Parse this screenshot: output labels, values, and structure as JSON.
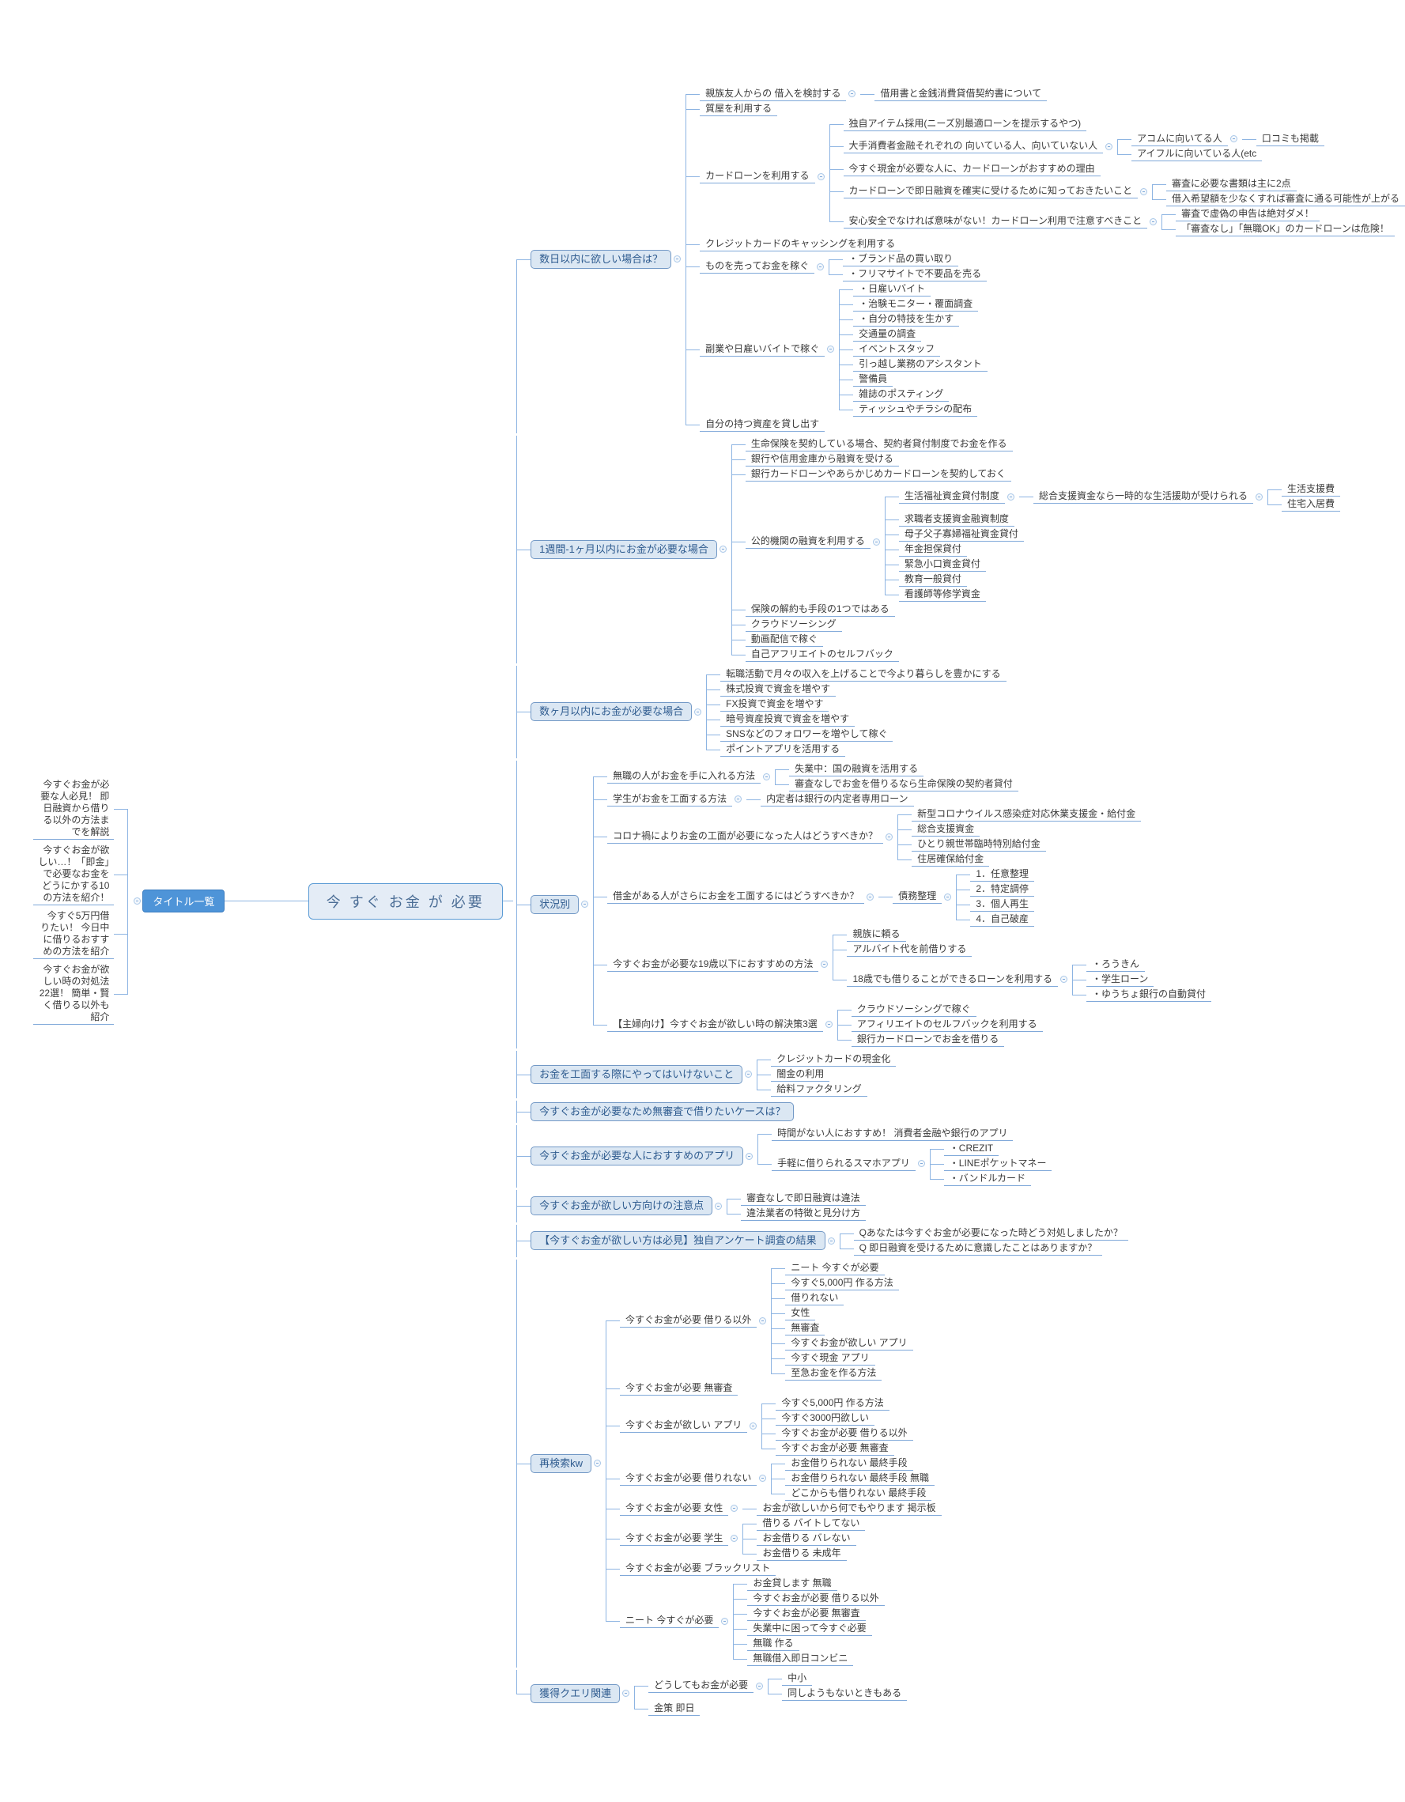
{
  "central": {
    "label": "今 すぐ お金 が 必要"
  },
  "colors": {
    "connector": "#8db4e2",
    "underline": "#7fa8d9",
    "box_fill": "#dbe7f3",
    "box_border": "#7399c6",
    "box_text": "#2e5b8f",
    "title_node_fill": "#4e94d8",
    "central_fill": "#e4ecf6"
  },
  "left_branch": {
    "node": "タイトル一覧",
    "items": [
      "今すぐお金が必要な人必見！ 即日融資から借りる以外の方法までを解説",
      "今すぐお金が欲しい…！「即金」で必要なお金をどうにかする10の方法を紹介！",
      "今すぐ5万円借りたい！ 今日中に借りるおすすめの方法を紹介",
      "今すぐお金が欲しい時の対処法22選！ 簡単・賢く借りる以外も紹介"
    ]
  },
  "sections": [
    {
      "t": "数日以内に欲しい場合は？",
      "box": true,
      "c": [
        {
          "t": "親族友人からの 借入を検討する",
          "c": [
            {
              "t": "借用書と金銭消費貸借契約書について"
            }
          ]
        },
        {
          "t": "質屋を利用する"
        },
        {
          "t": "カードローンを利用する",
          "c": [
            {
              "t": "独自アイテム採用(ニーズ別最適ローンを提示するやつ)"
            },
            {
              "t": "大手消費者金融それぞれの 向いている人、向いていない人",
              "c": [
                {
                  "t": "アコムに向いてる人",
                  "c": [
                    {
                      "t": "口コミも掲載"
                    }
                  ]
                },
                {
                  "t": "アイフルに向いている人(etc"
                }
              ]
            },
            {
              "t": "今すぐ現金が必要な人に、カードローンがおすすめの理由"
            },
            {
              "t": "カードローンで即日融資を確実に受けるために知っておきたいこと",
              "c": [
                {
                  "t": "審査に必要な書類は主に2点"
                },
                {
                  "t": "借入希望額を少なくすれば審査に通る可能性が上がる"
                }
              ]
            },
            {
              "t": "安心安全でなければ意味がない！カードローン利用で注意すべきこと",
              "c": [
                {
                  "t": "審査で虚偽の申告は絶対ダメ！"
                },
                {
                  "t": "「審査なし」「無職OK」のカードローンは危険！"
                }
              ]
            }
          ]
        },
        {
          "t": "クレジットカードのキャッシングを利用する"
        },
        {
          "t": "ものを売ってお金を稼ぐ",
          "c": [
            {
              "t": "・ブランド品の買い取り"
            },
            {
              "t": "・フリマサイトで不要品を売る"
            }
          ]
        },
        {
          "t": "副業や日雇いバイトで稼ぐ",
          "c": [
            {
              "t": "・日雇いバイト"
            },
            {
              "t": "・治験モニター・覆面調査"
            },
            {
              "t": "・自分の特技を生かす"
            },
            {
              "t": "交通量の調査"
            },
            {
              "t": "イベントスタッフ"
            },
            {
              "t": "引っ越し業務のアシスタント"
            },
            {
              "t": "警備員"
            },
            {
              "t": "雑誌のポスティング"
            },
            {
              "t": "ティッシュやチラシの配布"
            }
          ]
        },
        {
          "t": "自分の持つ資産を貸し出す"
        }
      ]
    },
    {
      "t": "1週間-1ヶ月以内にお金が必要な場合",
      "box": true,
      "c": [
        {
          "t": "生命保険を契約している場合、契約者貸付制度でお金を作る"
        },
        {
          "t": "銀行や信用金庫から融資を受ける"
        },
        {
          "t": "銀行カードローンやあらかじめカードローンを契約しておく"
        },
        {
          "t": "公的機関の融資を利用する",
          "c": [
            {
              "t": "生活福祉資金貸付制度",
              "c": [
                {
                  "t": "総合支援資金なら一時的な生活援助が受けられる",
                  "c": [
                    {
                      "t": "生活支援費"
                    },
                    {
                      "t": "住宅入居費"
                    }
                  ]
                }
              ]
            },
            {
              "t": "求職者支援資金融資制度"
            },
            {
              "t": "母子父子寡婦福祉資金貸付"
            },
            {
              "t": "年金担保貸付"
            },
            {
              "t": "緊急小口資金貸付"
            },
            {
              "t": "教育一般貸付"
            },
            {
              "t": "看護師等修学資金"
            }
          ]
        },
        {
          "t": "保険の解約も手段の1つではある"
        },
        {
          "t": "クラウドソーシング"
        },
        {
          "t": "動画配信で稼ぐ"
        },
        {
          "t": "自己アフリエイトのセルフバック"
        }
      ]
    },
    {
      "t": "数ヶ月以内にお金が必要な場合",
      "box": true,
      "c": [
        {
          "t": "転職活動で月々の収入を上げることで今より暮らしを豊かにする"
        },
        {
          "t": "株式投資で資金を増やす"
        },
        {
          "t": "FX投資で資金を増やす"
        },
        {
          "t": "暗号資産投資で資金を増やす"
        },
        {
          "t": "SNSなどのフォロワーを増やして稼ぐ"
        },
        {
          "t": "ポイントアプリを活用する"
        }
      ]
    },
    {
      "t": "状況別",
      "box": true,
      "c": [
        {
          "t": "無職の人がお金を手に入れる方法",
          "c": [
            {
              "t": "失業中：国の融資を活用する"
            },
            {
              "t": "審査なしでお金を借りるなら生命保険の契約者貸付"
            }
          ]
        },
        {
          "t": "学生がお金を工面する方法",
          "c": [
            {
              "t": "内定者は銀行の内定者専用ローン"
            }
          ]
        },
        {
          "t": "コロナ禍によりお金の工面が必要になった人はどうすべきか？",
          "c": [
            {
              "t": "新型コロナウイルス感染症対応休業支援金・給付金"
            },
            {
              "t": "総合支援資金"
            },
            {
              "t": "ひとり親世帯臨時特別給付金"
            },
            {
              "t": "住居確保給付金"
            }
          ]
        },
        {
          "t": "借金がある人がさらにお金を工面するにはどうすべきか？",
          "c": [
            {
              "t": "債務整理",
              "c": [
                {
                  "t": "1．任意整理"
                },
                {
                  "t": "2．特定調停"
                },
                {
                  "t": "3．個人再生"
                },
                {
                  "t": "4．自己破産"
                }
              ]
            }
          ]
        },
        {
          "t": "今すぐお金が必要な19歳以下におすすめの方法",
          "c": [
            {
              "t": "親族に頼る"
            },
            {
              "t": "アルバイト代を前借りする"
            },
            {
              "t": "18歳でも借りることができるローンを利用する",
              "c": [
                {
                  "t": "・ろうきん"
                },
                {
                  "t": "・学生ローン"
                },
                {
                  "t": "・ゆうちょ銀行の自動貸付"
                }
              ]
            }
          ]
        },
        {
          "t": "【主婦向け】今すぐお金が欲しい時の解決策3選",
          "c": [
            {
              "t": "クラウドソーシングで稼ぐ"
            },
            {
              "t": "アフィリエイトのセルフバックを利用する"
            },
            {
              "t": "銀行カードローンでお金を借りる"
            }
          ]
        }
      ]
    },
    {
      "t": "お金を工面する際にやってはいけないこと",
      "box": true,
      "c": [
        {
          "t": "クレジットカードの現金化"
        },
        {
          "t": "闇金の利用"
        },
        {
          "t": "給料ファクタリング"
        }
      ]
    },
    {
      "t": "今すぐお金が必要なため無審査で借りたいケースは？",
      "box": true
    },
    {
      "t": "今すぐお金が必要な人におすすめのアプリ",
      "box": true,
      "c": [
        {
          "t": "時間がない人におすすめ！ 消費者金融や銀行のアプリ"
        },
        {
          "t": "手軽に借りられるスマホアプリ",
          "c": [
            {
              "t": "・CREZIT"
            },
            {
              "t": "・LINEポケットマネー"
            },
            {
              "t": "・バンドルカード"
            }
          ]
        }
      ]
    },
    {
      "t": "今すぐお金が欲しい方向けの注意点",
      "box": true,
      "c": [
        {
          "t": "審査なしで即日融資は違法"
        },
        {
          "t": "違法業者の特徴と見分け方"
        }
      ]
    },
    {
      "t": "【今すぐお金が欲しい方は必見】独自アンケート調査の結果",
      "box": true,
      "c": [
        {
          "t": "Qあなたは今すぐお金が必要になった時どう対処しましたか？"
        },
        {
          "t": "Q 即日融資を受けるために意識したことはありますか？"
        }
      ]
    },
    {
      "t": "再検索kw",
      "box": true,
      "c": [
        {
          "t": "今すぐお金が必要 借りる以外",
          "c": [
            {
              "t": "ニート 今すぐが必要"
            },
            {
              "t": "今すぐ5,000円 作る方法"
            },
            {
              "t": "借りれない"
            },
            {
              "t": "女性"
            },
            {
              "t": "無審査"
            },
            {
              "t": "今すぐお金が欲しい アプリ"
            },
            {
              "t": "今すぐ現金 アプリ"
            },
            {
              "t": "至急お金を作る方法"
            }
          ]
        },
        {
          "t": "今すぐお金が必要 無審査"
        },
        {
          "t": "今すぐお金が欲しい アプリ",
          "c": [
            {
              "t": "今すぐ5,000円 作る方法"
            },
            {
              "t": "今すぐ3000円欲しい"
            },
            {
              "t": "今すぐお金が必要 借りる以外"
            },
            {
              "t": "今すぐお金が必要 無審査"
            }
          ]
        },
        {
          "t": "今すぐお金が必要 借りれない",
          "c": [
            {
              "t": "お金借りられない 最終手段"
            },
            {
              "t": "お金借りられない 最終手段 無職"
            },
            {
              "t": "どこからも借りれない 最終手段"
            }
          ]
        },
        {
          "t": "今すぐお金が必要 女性",
          "c": [
            {
              "t": "お金が欲しいから何でもやります 掲示板"
            }
          ]
        },
        {
          "t": "今すぐお金が必要 学生",
          "c": [
            {
              "t": "借りる バイトしてない"
            },
            {
              "t": "お金借りる バレない"
            },
            {
              "t": "お金借りる 未成年"
            }
          ]
        },
        {
          "t": "今すぐお金が必要 ブラックリスト"
        },
        {
          "t": "ニート 今すぐが必要",
          "c": [
            {
              "t": "お金貸します 無職"
            },
            {
              "t": "今すぐお金が必要 借りる以外"
            },
            {
              "t": "今すぐお金が必要 無審査"
            },
            {
              "t": "失業中に困って今すぐ必要"
            },
            {
              "t": "無職 作る"
            },
            {
              "t": "無職借入即日コンビニ"
            }
          ]
        }
      ]
    },
    {
      "t": "獲得クエリ関連",
      "box": true,
      "c": [
        {
          "t": "どうしてもお金が必要",
          "c": [
            {
              "t": "中小"
            },
            {
              "t": "同しようもないときもある"
            }
          ]
        },
        {
          "t": "金策 即日"
        }
      ]
    }
  ]
}
